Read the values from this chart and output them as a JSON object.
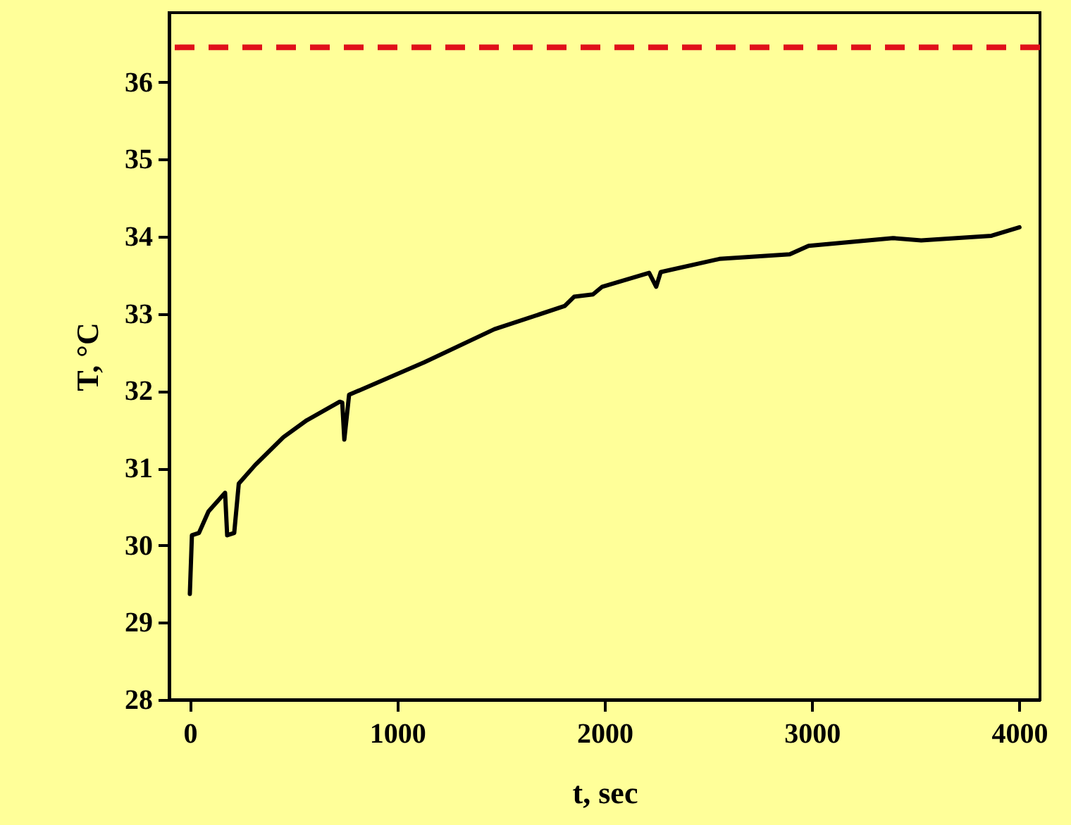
{
  "chart_data": {
    "type": "line",
    "xlabel": "t, sec",
    "ylabel": "T, °C",
    "xlim": [
      -100,
      4100
    ],
    "xticks": [
      0,
      1000,
      2000,
      3000,
      4000
    ],
    "ylim": [
      28,
      36.9
    ],
    "yticks": [
      28,
      29,
      30,
      31,
      32,
      33,
      34,
      35,
      36
    ],
    "grid": false,
    "marker": "none",
    "line_style": "solid",
    "series": [
      {
        "color": "#000000",
        "x": [
          0,
          10,
          44,
          90,
          170,
          180,
          214,
          236,
          315,
          451,
          564,
          723,
          735,
          745,
          768,
          1130,
          1469,
          1808,
          1853,
          1944,
          1989,
          2215,
          2249,
          2271,
          2554,
          2893,
          2984,
          3391,
          3527,
          3866,
          4001
        ],
        "values": [
          29.37,
          30.13,
          30.16,
          30.44,
          30.68,
          30.13,
          30.16,
          30.8,
          31.04,
          31.4,
          31.62,
          31.86,
          31.85,
          31.37,
          31.95,
          32.37,
          32.8,
          33.1,
          33.22,
          33.25,
          33.35,
          33.53,
          33.35,
          33.54,
          33.71,
          33.77,
          33.88,
          33.98,
          33.95,
          34.01,
          34.12
        ]
      }
    ],
    "ref_lines": [
      {
        "axis": "y",
        "value": 36.45,
        "color": "#e0101a",
        "line_style": "dashed"
      }
    ]
  }
}
